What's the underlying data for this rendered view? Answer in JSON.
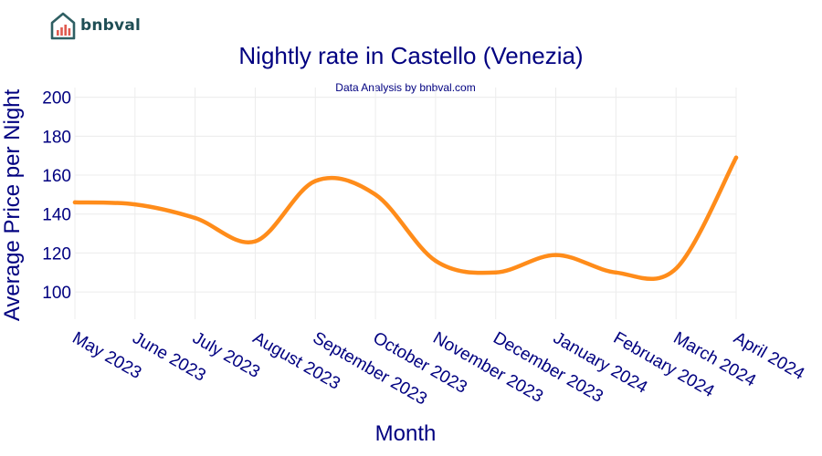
{
  "brand": {
    "name": "bnbval"
  },
  "chart_data": {
    "type": "line",
    "title": "Nightly rate in Castello (Venezia)",
    "subtitle": "Data Analysis by bnbval.com",
    "xlabel": "Month",
    "ylabel": "Average Price per Night",
    "categories": [
      "May 2023",
      "June 2023",
      "July 2023",
      "August 2023",
      "September 2023",
      "October 2023",
      "November 2023",
      "December 2023",
      "January 2024",
      "February 2024",
      "March 2024",
      "April 2024"
    ],
    "series": [
      {
        "values": [
          146,
          145,
          138,
          126,
          157,
          150,
          116,
          110,
          119,
          110,
          112,
          169
        ]
      }
    ],
    "yticks": [
      100,
      120,
      140,
      160,
      180,
      200
    ],
    "ylim": [
      86,
      205
    ],
    "grid": true,
    "line_color": "#ff8c1a",
    "text_color": "#000080",
    "grid_color": "#ececec"
  }
}
